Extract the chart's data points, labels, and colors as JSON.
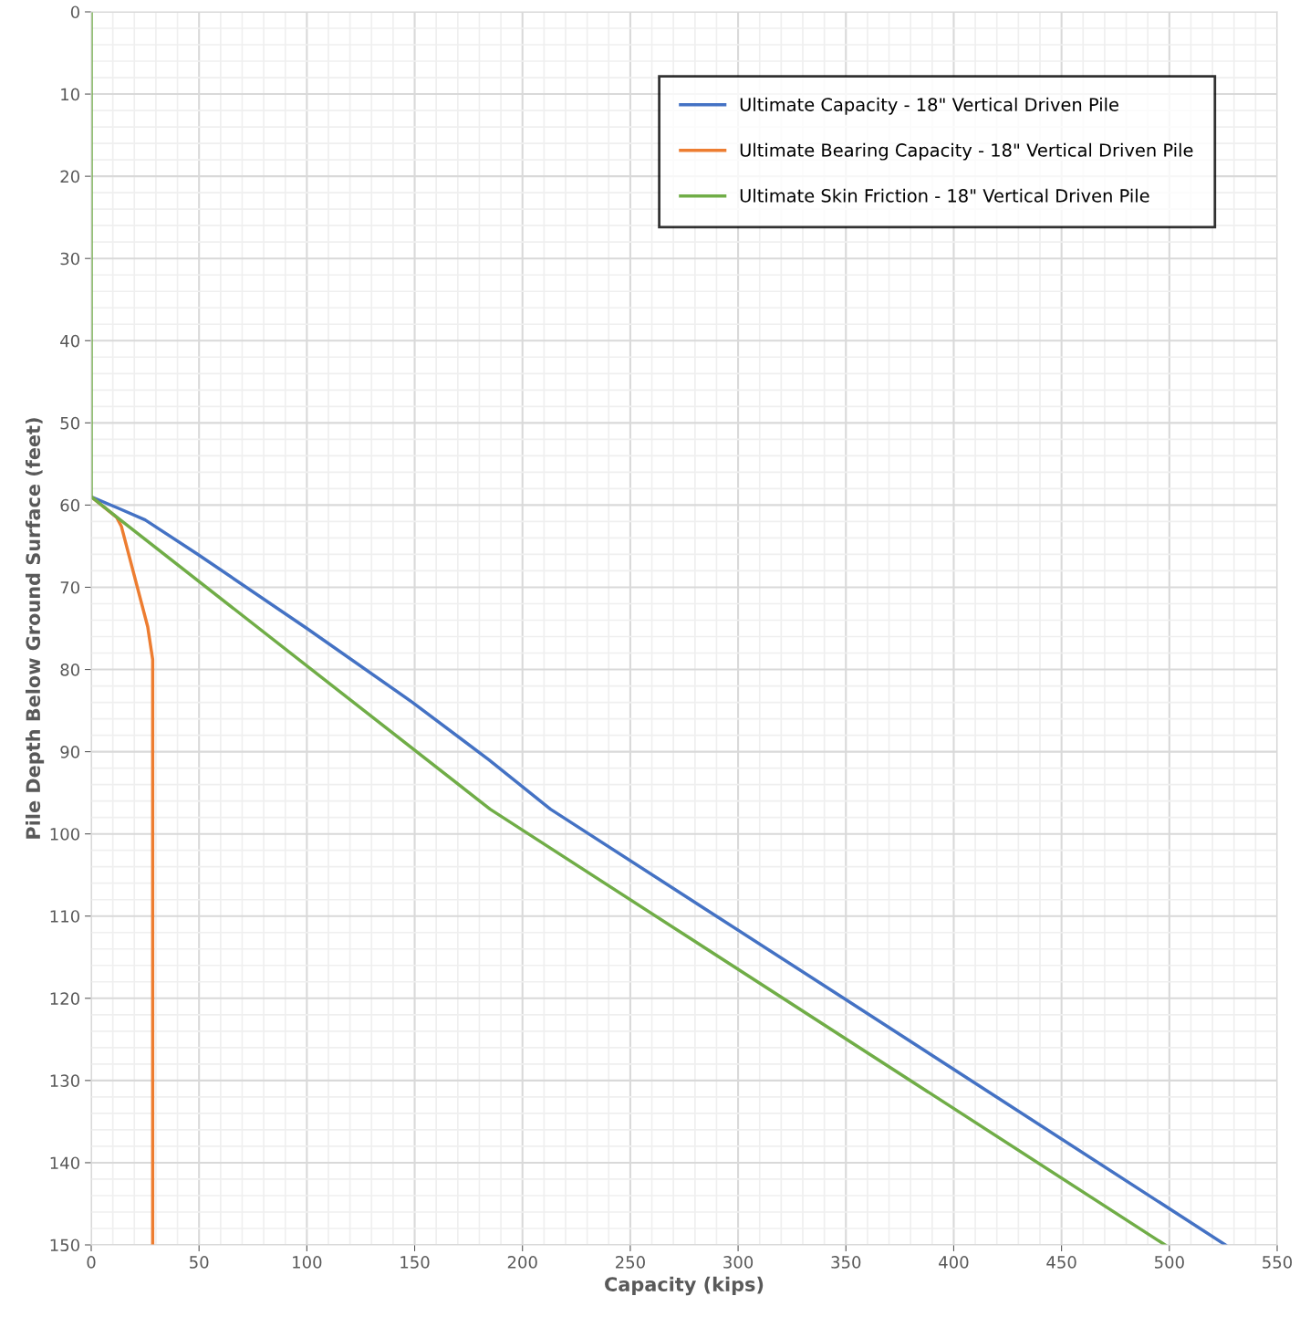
{
  "chart_data": {
    "type": "line",
    "xlabel": "Capacity (kips)",
    "ylabel": "Pile Depth Below Ground Surface (feet)",
    "xlim": [
      0,
      550
    ],
    "xticks": [
      0,
      50,
      100,
      150,
      200,
      250,
      300,
      350,
      400,
      450,
      500,
      550
    ],
    "ylim": [
      150,
      0
    ],
    "yticks": [
      0,
      10,
      20,
      30,
      40,
      50,
      60,
      70,
      80,
      90,
      100,
      110,
      120,
      130,
      140,
      150
    ],
    "grid": true,
    "legend": "top right",
    "marker": "none",
    "line_style": "solid",
    "series": [
      {
        "name": "Ultimate Capacity - 18\" Vertical Driven Pile",
        "color": "#4472c4",
        "x": [
          0,
          12.7,
          25,
          49.5,
          100,
          149,
          184.5,
          213,
          349,
          526
        ],
        "values": [
          59,
          60.4,
          61.8,
          66,
          75,
          84,
          91,
          97,
          120,
          150
        ]
      },
      {
        "name": "Ultimate Bearing Capacity - 18\" Vertical Driven Pile",
        "color": "#ed7d31",
        "x": [
          0,
          11.8,
          14,
          26.2,
          28.5,
          28.5
        ],
        "values": [
          59,
          61.5,
          62.6,
          74.8,
          78.8,
          150
        ]
      },
      {
        "name": "Ultimate Skin Friction - 18\" Vertical Driven Pile",
        "color": "#70ad47",
        "x": [
          0,
          0,
          12,
          185,
          498
        ],
        "values": [
          0,
          59,
          61.5,
          97,
          150
        ]
      }
    ]
  }
}
